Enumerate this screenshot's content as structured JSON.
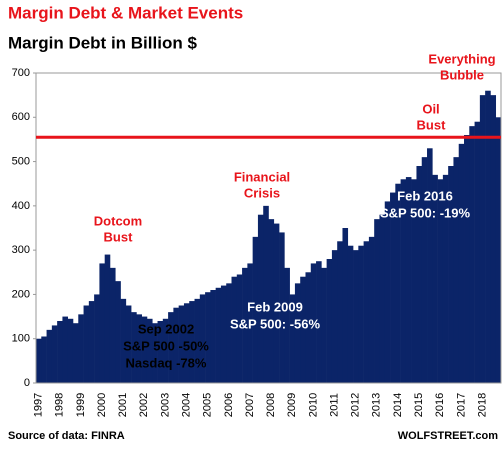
{
  "chart_data": {
    "type": "bar",
    "title": "Margin Debt & Market Events",
    "subtitle": "Margin Debt in Billion $",
    "categories": [
      "1997",
      null,
      null,
      null,
      "1998",
      null,
      null,
      null,
      "1999",
      null,
      null,
      null,
      "2000",
      null,
      null,
      null,
      "2001",
      null,
      null,
      null,
      "2002",
      null,
      null,
      null,
      "2003",
      null,
      null,
      null,
      "2004",
      null,
      null,
      null,
      "2005",
      null,
      null,
      null,
      "2006",
      null,
      null,
      null,
      "2007",
      null,
      null,
      null,
      "2008",
      null,
      null,
      null,
      "2009",
      null,
      null,
      null,
      "2010",
      null,
      null,
      null,
      "2011",
      null,
      null,
      null,
      "2012",
      null,
      null,
      null,
      "2013",
      null,
      null,
      null,
      "2014",
      null,
      null,
      null,
      "2015",
      null,
      null,
      null,
      "2016",
      null,
      null,
      null,
      "2017",
      null,
      null,
      null,
      "2018",
      null,
      null,
      null
    ],
    "values": [
      100,
      105,
      120,
      130,
      140,
      150,
      145,
      135,
      155,
      175,
      185,
      200,
      270,
      290,
      260,
      230,
      190,
      175,
      160,
      155,
      150,
      145,
      135,
      140,
      145,
      160,
      170,
      175,
      180,
      185,
      190,
      200,
      205,
      210,
      215,
      220,
      225,
      240,
      245,
      260,
      270,
      330,
      380,
      400,
      370,
      360,
      340,
      260,
      200,
      225,
      240,
      250,
      270,
      275,
      260,
      280,
      300,
      320,
      350,
      310,
      300,
      310,
      320,
      330,
      370,
      380,
      410,
      430,
      450,
      460,
      465,
      460,
      490,
      510,
      530,
      470,
      460,
      470,
      490,
      510,
      540,
      560,
      580,
      590,
      650,
      660,
      650,
      600
    ],
    "color": "#0b2468",
    "ylim": [
      0,
      700
    ],
    "yticks": [
      0,
      100,
      200,
      300,
      400,
      500,
      600,
      700
    ],
    "reference_line": 555,
    "reference_color": "#e8141b",
    "annotations": [
      {
        "lines": [
          "Dotcom",
          "Bust"
        ],
        "color": "#e8141b"
      },
      {
        "lines": [
          "Financial",
          "Crisis"
        ],
        "color": "#e8141b"
      },
      {
        "lines": [
          "Oil",
          "Bust"
        ],
        "color": "#e8141b"
      },
      {
        "lines": [
          "Everything",
          "Bubble"
        ],
        "color": "#e8141b"
      },
      {
        "lines": [
          "Sep 2002",
          "S&P 500 -50%",
          "Nasdaq -78%"
        ],
        "color": "#000000"
      },
      {
        "lines": [
          "Feb 2009",
          "S&P 500: -56%"
        ],
        "color": "#ffffff"
      },
      {
        "lines": [
          "Feb 2016",
          "S&P 500: -19%"
        ],
        "color": "#ffffff"
      }
    ],
    "source": "Source of data: FINRA",
    "brand": "WOLFSTREET.com"
  }
}
